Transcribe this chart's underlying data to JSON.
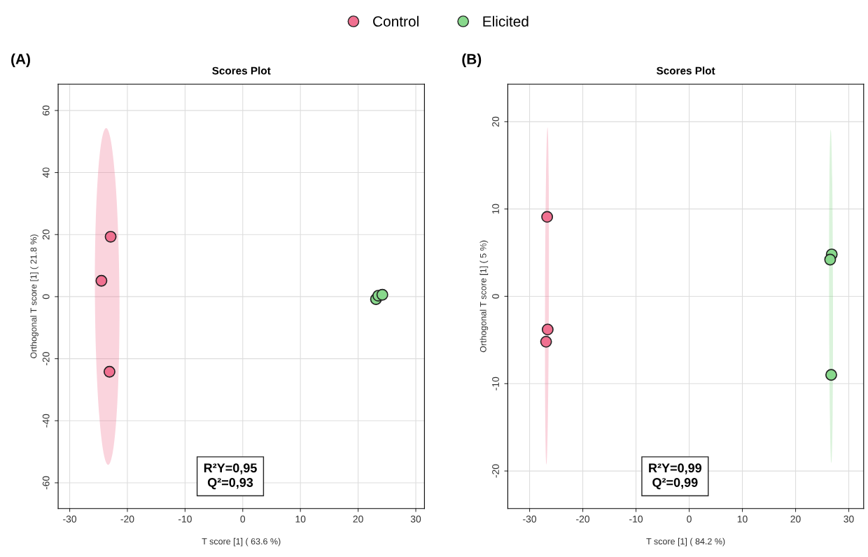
{
  "chart_data": [
    {
      "type": "scatter",
      "title": "Scores Plot",
      "xlabel": "T score [1] ( 63.6 %)",
      "ylabel": "Orthogonal T score [1] ( 21.8 %)",
      "annotations": [
        "(A)",
        "R²Y=0,95\nQ²=0,93"
      ],
      "xlim": [
        -32,
        31.5
      ],
      "ylim": [
        -68.3,
        68.5
      ],
      "xticks": [
        -30,
        -20,
        -10,
        0,
        10,
        20,
        30
      ],
      "yticks": [
        -60,
        -40,
        -20,
        0,
        20,
        40,
        60
      ],
      "grid": true,
      "legend": "top",
      "marker": "circle",
      "series": [
        {
          "name": "Control",
          "color": "#f07090",
          "x": [
            -22.9,
            -24.5,
            -23.1
          ],
          "values": [
            19.3,
            5.1,
            -24.2
          ]
        },
        {
          "name": "Elicited",
          "color": "#88d88c",
          "x": [
            23.1,
            23.5,
            24.2
          ],
          "values": [
            -0.8,
            0.3,
            0.6
          ]
        }
      ]
    },
    {
      "type": "scatter",
      "title": "Scores Plot",
      "xlabel": "T score [1] ( 84.2 %)",
      "ylabel": "Orthogonal T score [1] ( 5 %)",
      "annotations": [
        "(B)",
        "R²Y=0,99\nQ²=0,99"
      ],
      "xlim": [
        -34.1,
        32.8
      ],
      "ylim": [
        -24.3,
        24.3
      ],
      "xticks": [
        -30,
        -20,
        -10,
        0,
        10,
        20,
        30
      ],
      "yticks": [
        -20,
        -10,
        0,
        10,
        20
      ],
      "grid": true,
      "legend": "top",
      "marker": "circle",
      "series": [
        {
          "name": "Control",
          "color": "#f07090",
          "x": [
            -26.7,
            -26.6,
            -26.9
          ],
          "values": [
            9.1,
            -3.8,
            -5.2
          ]
        },
        {
          "name": "Elicited",
          "color": "#88d88c",
          "x": [
            26.8,
            26.5,
            26.7
          ],
          "values": [
            4.8,
            4.2,
            -9.0
          ]
        }
      ]
    }
  ]
}
